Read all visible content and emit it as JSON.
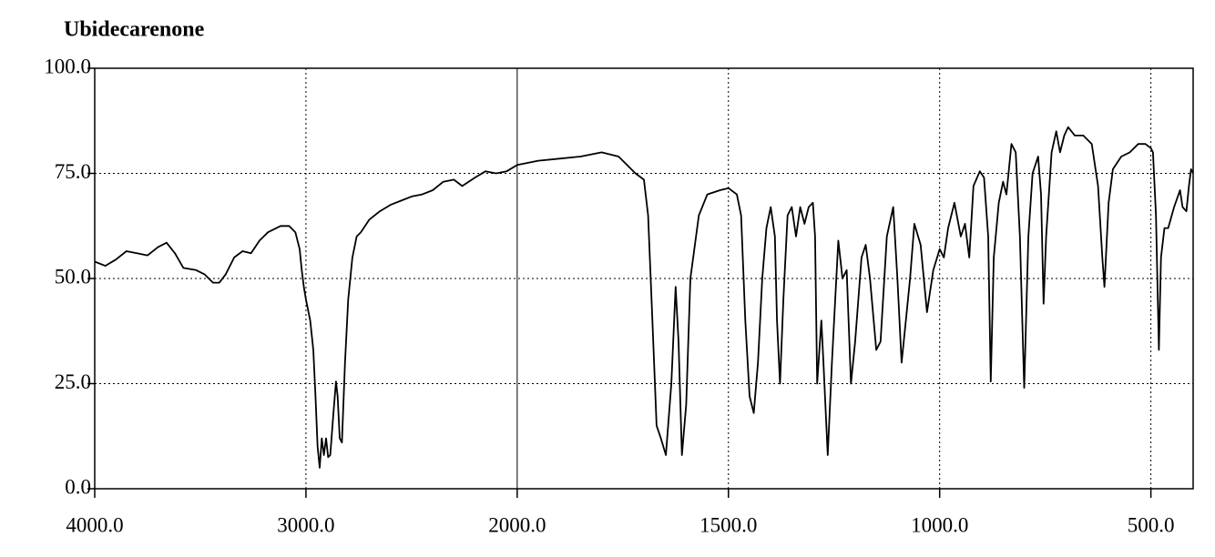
{
  "chart_data": {
    "type": "line",
    "title": "Ubidecarenone",
    "x": [
      4000,
      3950,
      3900,
      3850,
      3800,
      3750,
      3700,
      3660,
      3620,
      3580,
      3520,
      3480,
      3440,
      3410,
      3380,
      3340,
      3300,
      3260,
      3220,
      3180,
      3120,
      3080,
      3050,
      3030,
      3020,
      3010,
      3000,
      2980,
      2965,
      2955,
      2945,
      2935,
      2925,
      2915,
      2905,
      2895,
      2885,
      2870,
      2858,
      2850,
      2840,
      2830,
      2815,
      2800,
      2780,
      2760,
      2740,
      2700,
      2650,
      2600,
      2550,
      2500,
      2450,
      2400,
      2350,
      2300,
      2260,
      2200,
      2150,
      2100,
      2050,
      2000,
      1950,
      1900,
      1850,
      1800,
      1760,
      1720,
      1700,
      1690,
      1680,
      1670,
      1660,
      1648,
      1635,
      1625,
      1618,
      1610,
      1600,
      1590,
      1570,
      1550,
      1520,
      1500,
      1480,
      1470,
      1460,
      1450,
      1440,
      1430,
      1420,
      1410,
      1400,
      1390,
      1385,
      1378,
      1370,
      1360,
      1350,
      1340,
      1330,
      1320,
      1310,
      1300,
      1295,
      1290,
      1280,
      1275,
      1265,
      1255,
      1240,
      1230,
      1220,
      1210,
      1200,
      1185,
      1175,
      1165,
      1150,
      1140,
      1125,
      1110,
      1100,
      1090,
      1080,
      1070,
      1060,
      1045,
      1030,
      1015,
      1000,
      990,
      980,
      965,
      950,
      940,
      930,
      920,
      905,
      895,
      885,
      879,
      872,
      860,
      850,
      842,
      830,
      820,
      810,
      800,
      790,
      780,
      767,
      760,
      754,
      748,
      735,
      724,
      715,
      705,
      696,
      680,
      660,
      640,
      625,
      615,
      610,
      600,
      590,
      570,
      550,
      530,
      513,
      500,
      495,
      488,
      481,
      476,
      468,
      459,
      445,
      431,
      425,
      416,
      410,
      405,
      400
    ],
    "series": [
      {
        "color": "#000000",
        "values": [
          54,
          53,
          54.5,
          56.5,
          56,
          55.5,
          57.5,
          58.5,
          56,
          52.5,
          52,
          51,
          49,
          49,
          51,
          55,
          56.5,
          56,
          59,
          61,
          62.5,
          62.5,
          61,
          57,
          52,
          48,
          45,
          40,
          33,
          22,
          10,
          5,
          12,
          8,
          12,
          7.5,
          8,
          18,
          25.5,
          22,
          12,
          11,
          30,
          45,
          55,
          60,
          61,
          64,
          66,
          67.5,
          68.5,
          69.5,
          70,
          71,
          73,
          73.5,
          72,
          74,
          75.5,
          75,
          75.5,
          77,
          78,
          78.5,
          79,
          80,
          79,
          75,
          73.5,
          65,
          40,
          15,
          12,
          8,
          25,
          48,
          35,
          8,
          20,
          50,
          65,
          70,
          71,
          71.5,
          70,
          65,
          40,
          22,
          18,
          30,
          50,
          62,
          67,
          60,
          40,
          25,
          45,
          65,
          67,
          60,
          67,
          63,
          67,
          68,
          60,
          25,
          40,
          30,
          8,
          30,
          59,
          50,
          52,
          25,
          35,
          55,
          58,
          50,
          33,
          35,
          60,
          67,
          50,
          30,
          40,
          50,
          63,
          58,
          42,
          52,
          57,
          55,
          62,
          68,
          60,
          63,
          55,
          72,
          75.5,
          74,
          60,
          25.5,
          55,
          68,
          73,
          70,
          82,
          80,
          60,
          24,
          60,
          75,
          79,
          70,
          44,
          60,
          80,
          85,
          80,
          84,
          86,
          84,
          84,
          82,
          72,
          55,
          48,
          68,
          76,
          79,
          80,
          82,
          82,
          81,
          80,
          65,
          33,
          55,
          62,
          62,
          67,
          71,
          67,
          66,
          72,
          76,
          75
        ]
      }
    ],
    "xlim": [
      4000,
      400
    ],
    "x_break": 2000,
    "x_break_factor": 2,
    "xticks": [
      {
        "value": 4000,
        "label": "4000.0"
      },
      {
        "value": 3000,
        "label": "3000.0"
      },
      {
        "value": 2000,
        "label": "2000.0"
      },
      {
        "value": 1500,
        "label": "1500.0"
      },
      {
        "value": 1000,
        "label": "1000.0"
      },
      {
        "value": 500,
        "label": "500.0"
      }
    ],
    "ylim": [
      0,
      100
    ],
    "yticks": [
      {
        "value": 0,
        "label": "0.0"
      },
      {
        "value": 25,
        "label": "25.0"
      },
      {
        "value": 50,
        "label": "50.0"
      },
      {
        "value": 75,
        "label": "75.0"
      },
      {
        "value": 100,
        "label": "100.0"
      }
    ],
    "grid": true
  }
}
